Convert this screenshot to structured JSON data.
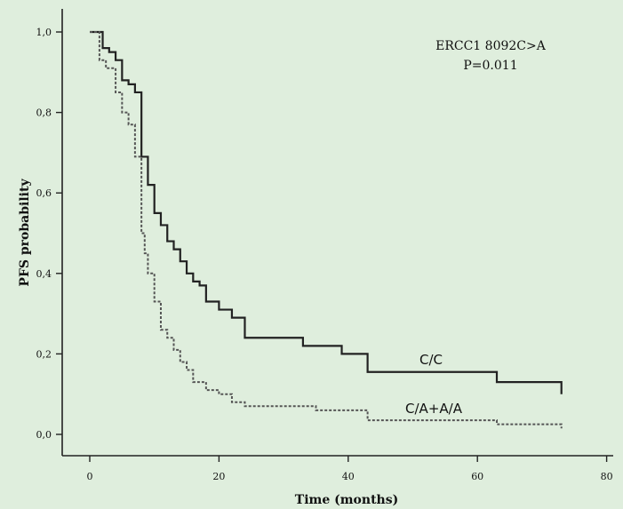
{
  "chart_data": {
    "type": "line",
    "title": "",
    "xlabel": "Time (months)",
    "ylabel": "PFS probability",
    "xlim": [
      0,
      80
    ],
    "ylim": [
      0,
      1.0
    ],
    "xticks": [
      0,
      20,
      40,
      60,
      80
    ],
    "xtick_labels": [
      "0",
      "20",
      "40",
      "60",
      "80"
    ],
    "yticks": [
      0,
      0.2,
      0.4,
      0.6,
      0.8,
      1.0
    ],
    "ytick_labels": [
      "0,0",
      "0,2",
      "0,4",
      "0,6",
      "0,8",
      "1,0"
    ],
    "grid": false,
    "annotations": [
      "ERCC1 8092C>A",
      "P=0.011"
    ],
    "series": [
      {
        "name": "C/C",
        "style": "solid",
        "color": "#222222",
        "x": [
          0,
          2,
          3,
          4,
          5,
          6,
          7,
          8,
          9,
          10,
          11,
          12,
          13,
          14,
          15,
          16,
          17,
          18,
          20,
          22,
          24,
          33,
          39,
          43,
          63,
          73
        ],
        "y": [
          1.0,
          0.96,
          0.95,
          0.93,
          0.88,
          0.87,
          0.85,
          0.69,
          0.62,
          0.55,
          0.52,
          0.48,
          0.46,
          0.43,
          0.4,
          0.38,
          0.37,
          0.33,
          0.31,
          0.29,
          0.24,
          0.22,
          0.2,
          0.155,
          0.13,
          0.1
        ]
      },
      {
        "name": "C/A+A/A",
        "style": "dashed",
        "color": "#555555",
        "x": [
          0,
          1.5,
          2.5,
          4,
          5,
          6,
          7,
          8,
          8.5,
          9,
          10,
          11,
          12,
          13,
          14,
          15,
          16,
          18,
          20,
          22,
          24,
          35,
          43,
          63,
          73
        ],
        "y": [
          1.0,
          0.93,
          0.91,
          0.85,
          0.8,
          0.77,
          0.69,
          0.5,
          0.45,
          0.4,
          0.33,
          0.26,
          0.24,
          0.21,
          0.18,
          0.16,
          0.13,
          0.11,
          0.1,
          0.08,
          0.07,
          0.06,
          0.035,
          0.025,
          0.015
        ]
      }
    ]
  }
}
